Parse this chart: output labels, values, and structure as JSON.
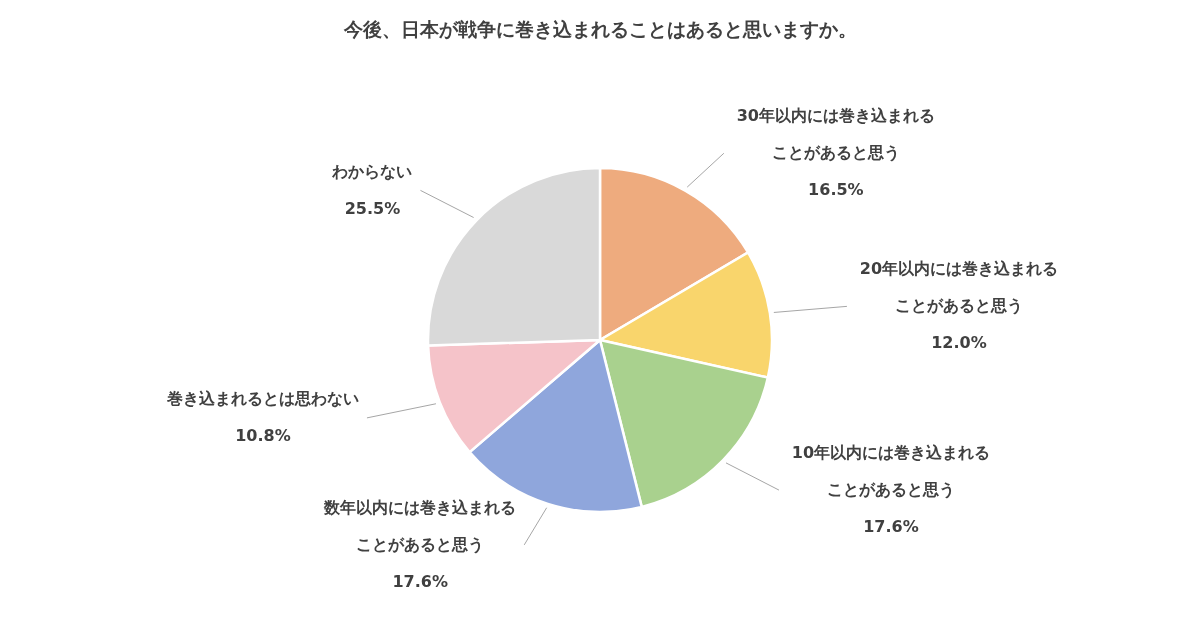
{
  "chart_data": {
    "type": "pie",
    "title": "今後、日本が戦争に巻き込まれることはあると思いますか。",
    "categories": [
      "30年以内には巻き込まれることがあると思う",
      "20年以内には巻き込まれることがあると思う",
      "10年以内には巻き込まれることがあると思う",
      "数年以内には巻き込まれることがあると思う",
      "巻き込まれるとは思わない",
      "わからない"
    ],
    "values": [
      16.5,
      12.0,
      17.6,
      17.6,
      10.8,
      25.5
    ],
    "value_labels": [
      "16.5%",
      "12.0%",
      "17.6%",
      "17.6%",
      "10.8%",
      "25.5%"
    ],
    "colors": [
      "#eeab7e",
      "#f9d56c",
      "#a9d18e",
      "#8fa6dc",
      "#f5c3c9",
      "#d9d9d9"
    ],
    "legend": false
  }
}
